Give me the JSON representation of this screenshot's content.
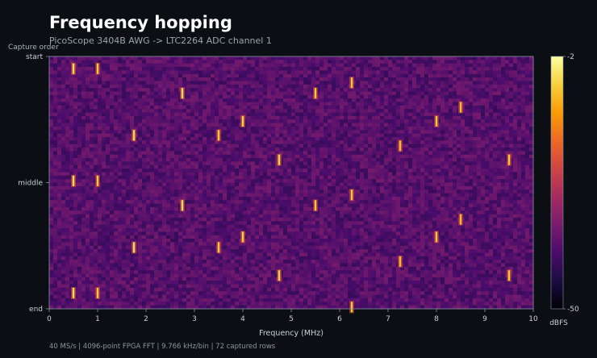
{
  "title": "Frequency hopping",
  "subtitle": "PicoScope 3404B AWG -> LTC2264 ADC channel 1",
  "footer": "40 MS/s  |  4096-point FPGA FFT  |  9.766 kHz/bin  |  72 captured rows",
  "chart_data": {
    "type": "heatmap",
    "xlabel": "Frequency (MHz)",
    "ylabel": "Capture order",
    "xlim": [
      0,
      10
    ],
    "x_ticks": [
      "0",
      "1",
      "2",
      "3",
      "4",
      "5",
      "6",
      "7",
      "8",
      "9",
      "10"
    ],
    "y_ticks": [
      "start",
      "middle",
      "end"
    ],
    "rows": 72,
    "colorbar": {
      "label": "dBFS",
      "range": [
        -50,
        -2
      ],
      "tick_labels": [
        "-2",
        "-50"
      ]
    },
    "colormap": [
      "#000004",
      "#1b0c41",
      "#4a0c6b",
      "#781c6d",
      "#a52c60",
      "#cf4446",
      "#ed6925",
      "#fb9b06",
      "#f7d13d",
      "#fcffa4"
    ],
    "background_level_dbfs": -38,
    "hops": [
      {
        "freq_mhz": 0.5,
        "row": 2,
        "level_dbfs": -6
      },
      {
        "freq_mhz": 1.0,
        "row": 2,
        "level_dbfs": -8
      },
      {
        "freq_mhz": 6.25,
        "row": 6,
        "level_dbfs": -8
      },
      {
        "freq_mhz": 2.75,
        "row": 9,
        "level_dbfs": -6
      },
      {
        "freq_mhz": 5.5,
        "row": 9,
        "level_dbfs": -8
      },
      {
        "freq_mhz": 8.5,
        "row": 13,
        "level_dbfs": -9
      },
      {
        "freq_mhz": 4.0,
        "row": 17,
        "level_dbfs": -7
      },
      {
        "freq_mhz": 8.0,
        "row": 17,
        "level_dbfs": -8
      },
      {
        "freq_mhz": 1.75,
        "row": 21,
        "level_dbfs": -6
      },
      {
        "freq_mhz": 3.5,
        "row": 21,
        "level_dbfs": -8
      },
      {
        "freq_mhz": 7.25,
        "row": 24,
        "level_dbfs": -9
      },
      {
        "freq_mhz": 4.75,
        "row": 28,
        "level_dbfs": -7
      },
      {
        "freq_mhz": 9.5,
        "row": 28,
        "level_dbfs": -8
      },
      {
        "freq_mhz": 0.5,
        "row": 34,
        "level_dbfs": -6
      },
      {
        "freq_mhz": 1.0,
        "row": 34,
        "level_dbfs": -8
      },
      {
        "freq_mhz": 6.25,
        "row": 38,
        "level_dbfs": -8
      },
      {
        "freq_mhz": 2.75,
        "row": 41,
        "level_dbfs": -6
      },
      {
        "freq_mhz": 5.5,
        "row": 41,
        "level_dbfs": -8
      },
      {
        "freq_mhz": 8.5,
        "row": 45,
        "level_dbfs": -9
      },
      {
        "freq_mhz": 4.0,
        "row": 50,
        "level_dbfs": -7
      },
      {
        "freq_mhz": 8.0,
        "row": 50,
        "level_dbfs": -8
      },
      {
        "freq_mhz": 1.75,
        "row": 53,
        "level_dbfs": -6
      },
      {
        "freq_mhz": 3.5,
        "row": 53,
        "level_dbfs": -8
      },
      {
        "freq_mhz": 7.25,
        "row": 57,
        "level_dbfs": -9
      },
      {
        "freq_mhz": 4.75,
        "row": 61,
        "level_dbfs": -7
      },
      {
        "freq_mhz": 9.5,
        "row": 61,
        "level_dbfs": -8
      },
      {
        "freq_mhz": 0.5,
        "row": 66,
        "level_dbfs": -6
      },
      {
        "freq_mhz": 1.0,
        "row": 66,
        "level_dbfs": -8
      },
      {
        "freq_mhz": 6.25,
        "row": 70,
        "level_dbfs": -8
      }
    ],
    "grid": false
  }
}
